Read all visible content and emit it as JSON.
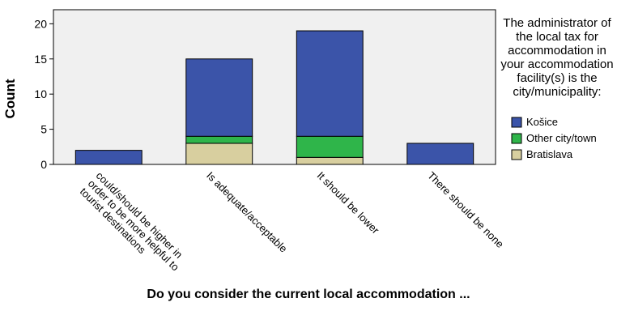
{
  "chart_data": {
    "type": "bar",
    "stacked": true,
    "categories": [
      "could/should be higher in order to be more helpful to tourist destinations",
      "Is adequate/acceptable",
      "It should be lower",
      "There should be none"
    ],
    "series": [
      {
        "name": "Bratislava",
        "color": "#d8cf9f",
        "values": [
          0,
          3,
          1,
          0
        ]
      },
      {
        "name": "Other city/town",
        "color": "#2fb54a",
        "values": [
          0,
          1,
          3,
          0
        ]
      },
      {
        "name": "Košice",
        "color": "#3b54a9",
        "values": [
          2,
          11,
          15,
          3
        ]
      }
    ],
    "xlabel": "Do you consider the current local accommodation ...",
    "ylabel": "Count",
    "ylim": [
      0,
      22
    ],
    "yticks": [
      0,
      5,
      10,
      15,
      20
    ],
    "legend": {
      "title": "The administrator of the local tax for accommodation in your accommodation facility(s) is the city/municipality:",
      "order": [
        "Košice",
        "Other city/town",
        "Bratislava"
      ],
      "placement": "right"
    },
    "grid": false,
    "plot_background": "#f0f0f0"
  }
}
